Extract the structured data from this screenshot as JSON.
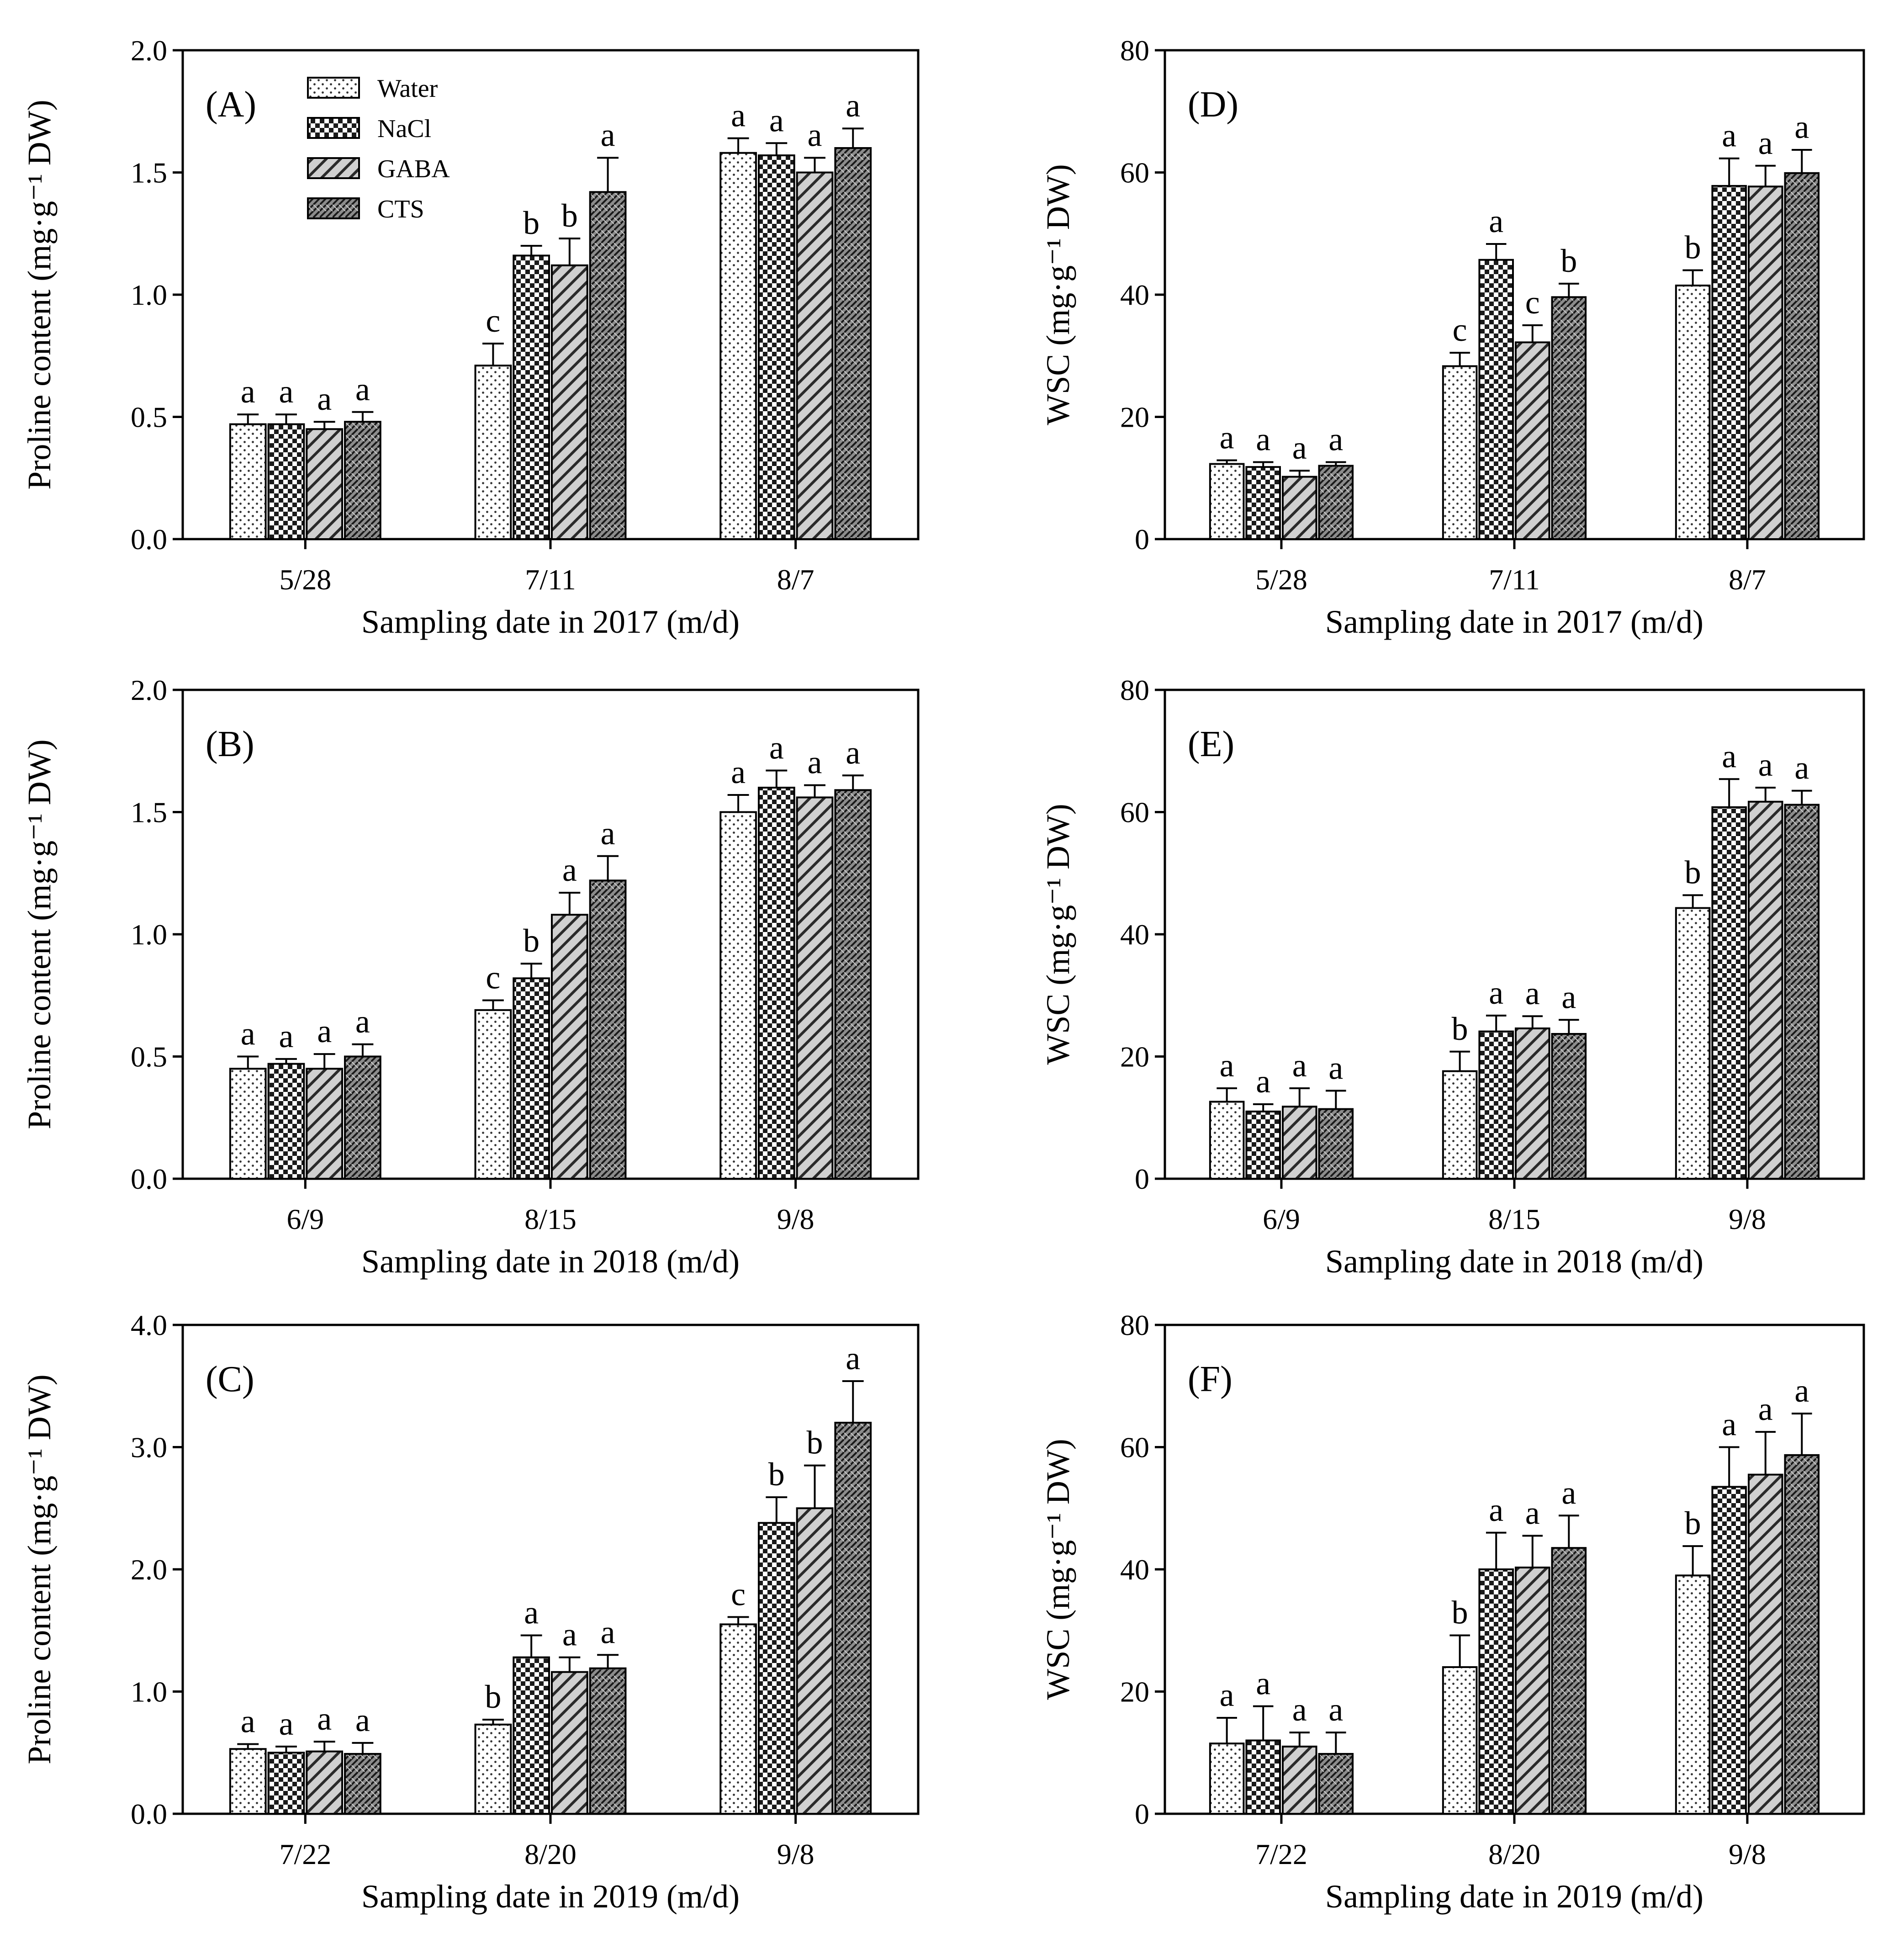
{
  "legend": {
    "entries": [
      {
        "name": "Water",
        "pattern": "dots"
      },
      {
        "name": "NaCl",
        "pattern": "checker"
      },
      {
        "name": "GABA",
        "pattern": "hatch"
      },
      {
        "name": "CTS",
        "pattern": "weave"
      }
    ]
  },
  "chart_data": [
    {
      "id": "A",
      "panel_label": "(A)",
      "type": "bar",
      "title": "",
      "ylabel": "Proline content (mg·g⁻¹ DW)",
      "xlabel": "Sampling date in 2017 (m/d)",
      "ylim": [
        0,
        2.0
      ],
      "yticks": [
        "0.0",
        "0.5",
        "1.0",
        "1.5",
        "2.0"
      ],
      "categories": [
        "5/28",
        "7/11",
        "8/7"
      ],
      "series": [
        {
          "name": "Water",
          "values": [
            0.47,
            0.71,
            1.58
          ],
          "errors": [
            0.04,
            0.09,
            0.06
          ],
          "letters": [
            "a",
            "c",
            "a"
          ]
        },
        {
          "name": "NaCl",
          "values": [
            0.47,
            1.16,
            1.57
          ],
          "errors": [
            0.04,
            0.04,
            0.05
          ],
          "letters": [
            "a",
            "b",
            "a"
          ]
        },
        {
          "name": "GABA",
          "values": [
            0.45,
            1.12,
            1.5
          ],
          "errors": [
            0.03,
            0.11,
            0.06
          ],
          "letters": [
            "a",
            "b",
            "a"
          ]
        },
        {
          "name": "CTS",
          "values": [
            0.48,
            1.42,
            1.6
          ],
          "errors": [
            0.04,
            0.14,
            0.08
          ],
          "letters": [
            "a",
            "a",
            "a"
          ]
        }
      ]
    },
    {
      "id": "D",
      "panel_label": "(D)",
      "type": "bar",
      "title": "",
      "ylabel": "WSC (mg·g⁻¹ DW)",
      "xlabel": "Sampling date in 2017 (m/d)",
      "ylim": [
        0,
        80
      ],
      "yticks": [
        "0",
        "20",
        "40",
        "60",
        "80"
      ],
      "categories": [
        "5/28",
        "7/11",
        "8/7"
      ],
      "series": [
        {
          "name": "Water",
          "values": [
            12.3,
            28.3,
            41.5
          ],
          "errors": [
            0.6,
            2.2,
            2.5
          ],
          "letters": [
            "a",
            "c",
            "b"
          ]
        },
        {
          "name": "NaCl",
          "values": [
            11.8,
            45.7,
            57.8
          ],
          "errors": [
            0.8,
            2.6,
            4.5
          ],
          "letters": [
            "a",
            "a",
            "a"
          ]
        },
        {
          "name": "GABA",
          "values": [
            10.2,
            32.2,
            57.7
          ],
          "errors": [
            1.0,
            2.8,
            3.4
          ],
          "letters": [
            "a",
            "c",
            "a"
          ]
        },
        {
          "name": "CTS",
          "values": [
            12.0,
            39.6,
            59.9
          ],
          "errors": [
            0.6,
            2.2,
            3.8
          ],
          "letters": [
            "a",
            "b",
            "a"
          ]
        }
      ]
    },
    {
      "id": "B",
      "panel_label": "(B)",
      "type": "bar",
      "title": "",
      "ylabel": "Proline content (mg·g⁻¹ DW)",
      "xlabel": "Sampling date in 2018 (m/d)",
      "ylim": [
        0,
        2.0
      ],
      "yticks": [
        "0.0",
        "0.5",
        "1.0",
        "1.5",
        "2.0"
      ],
      "categories": [
        "6/9",
        "8/15",
        "9/8"
      ],
      "series": [
        {
          "name": "Water",
          "values": [
            0.45,
            0.69,
            1.5
          ],
          "errors": [
            0.05,
            0.04,
            0.07
          ],
          "letters": [
            "a",
            "c",
            "a"
          ]
        },
        {
          "name": "NaCl",
          "values": [
            0.47,
            0.82,
            1.6
          ],
          "errors": [
            0.02,
            0.06,
            0.07
          ],
          "letters": [
            "a",
            "b",
            "a"
          ]
        },
        {
          "name": "GABA",
          "values": [
            0.45,
            1.08,
            1.56
          ],
          "errors": [
            0.06,
            0.09,
            0.05
          ],
          "letters": [
            "a",
            "a",
            "a"
          ]
        },
        {
          "name": "CTS",
          "values": [
            0.5,
            1.22,
            1.59
          ],
          "errors": [
            0.05,
            0.1,
            0.06
          ],
          "letters": [
            "a",
            "a",
            "a"
          ]
        }
      ]
    },
    {
      "id": "E",
      "panel_label": "(E)",
      "type": "bar",
      "title": "",
      "ylabel": "WSC (mg·g⁻¹ DW)",
      "xlabel": "Sampling date in 2018 (m/d)",
      "ylim": [
        0,
        80
      ],
      "yticks": [
        "0",
        "20",
        "40",
        "60",
        "80"
      ],
      "categories": [
        "6/9",
        "8/15",
        "9/8"
      ],
      "series": [
        {
          "name": "Water",
          "values": [
            12.6,
            17.6,
            44.3
          ],
          "errors": [
            2.2,
            3.2,
            2.1
          ],
          "letters": [
            "a",
            "b",
            "b"
          ]
        },
        {
          "name": "NaCl",
          "values": [
            11.0,
            24.1,
            60.8
          ],
          "errors": [
            1.2,
            2.6,
            4.6
          ],
          "letters": [
            "a",
            "a",
            "a"
          ]
        },
        {
          "name": "GABA",
          "values": [
            11.8,
            24.6,
            61.7
          ],
          "errors": [
            3.0,
            2.0,
            2.3
          ],
          "letters": [
            "a",
            "a",
            "a"
          ]
        },
        {
          "name": "CTS",
          "values": [
            11.4,
            23.7,
            61.2
          ],
          "errors": [
            3.0,
            2.3,
            2.3
          ],
          "letters": [
            "a",
            "a",
            "a"
          ]
        }
      ]
    },
    {
      "id": "C",
      "panel_label": "(C)",
      "type": "bar",
      "title": "",
      "ylabel": "Proline content (mg·g⁻¹ DW)",
      "xlabel": "Sampling date in 2019 (m/d)",
      "ylim": [
        0,
        4.0
      ],
      "yticks": [
        "0.0",
        "1.0",
        "2.0",
        "3.0",
        "4.0"
      ],
      "categories": [
        "7/22",
        "8/20",
        "9/8"
      ],
      "series": [
        {
          "name": "Water",
          "values": [
            0.53,
            0.73,
            1.55
          ],
          "errors": [
            0.04,
            0.04,
            0.06
          ],
          "letters": [
            "a",
            "b",
            "c"
          ]
        },
        {
          "name": "NaCl",
          "values": [
            0.5,
            1.28,
            2.38
          ],
          "errors": [
            0.05,
            0.18,
            0.21
          ],
          "letters": [
            "a",
            "a",
            "b"
          ]
        },
        {
          "name": "GABA",
          "values": [
            0.51,
            1.16,
            2.5
          ],
          "errors": [
            0.08,
            0.12,
            0.35
          ],
          "letters": [
            "a",
            "a",
            "b"
          ]
        },
        {
          "name": "CTS",
          "values": [
            0.49,
            1.19,
            3.2
          ],
          "errors": [
            0.09,
            0.11,
            0.34
          ],
          "letters": [
            "a",
            "a",
            "a"
          ]
        }
      ]
    },
    {
      "id": "F",
      "panel_label": "(F)",
      "type": "bar",
      "title": "",
      "ylabel": "WSC (mg·g⁻¹ DW)",
      "xlabel": "Sampling date in 2019 (m/d)",
      "ylim": [
        0,
        80
      ],
      "yticks": [
        "0",
        "20",
        "40",
        "60",
        "80"
      ],
      "categories": [
        "7/22",
        "8/20",
        "9/8"
      ],
      "series": [
        {
          "name": "Water",
          "values": [
            11.5,
            24.0,
            39.0
          ],
          "errors": [
            4.2,
            5.2,
            4.8
          ],
          "letters": [
            "a",
            "b",
            "b"
          ]
        },
        {
          "name": "NaCl",
          "values": [
            12.0,
            40.0,
            53.5
          ],
          "errors": [
            5.6,
            6.0,
            6.5
          ],
          "letters": [
            "a",
            "a",
            "a"
          ]
        },
        {
          "name": "GABA",
          "values": [
            11.0,
            40.3,
            55.5
          ],
          "errors": [
            2.3,
            5.2,
            7.0
          ],
          "letters": [
            "a",
            "a",
            "a"
          ]
        },
        {
          "name": "CTS",
          "values": [
            9.8,
            43.5,
            58.7
          ],
          "errors": [
            3.5,
            5.3,
            6.8
          ],
          "letters": [
            "a",
            "a",
            "a"
          ]
        }
      ]
    }
  ]
}
